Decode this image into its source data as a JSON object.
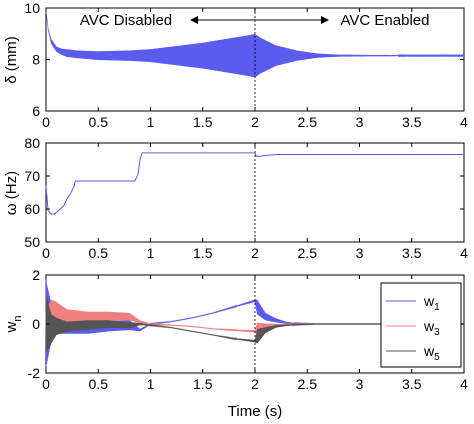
{
  "chart_data": [
    {
      "type": "line",
      "title": "",
      "xlabel": "",
      "ylabel": "δ (mm)",
      "xlim": [
        0,
        4
      ],
      "ylim": [
        6,
        10
      ],
      "xticks": [
        "0",
        "0.5",
        "1",
        "1.5",
        "2",
        "2.5",
        "3",
        "3.5",
        "4"
      ],
      "yticks": [
        "6",
        "8",
        "10"
      ],
      "annotations": {
        "left": "AVC Disabled",
        "right": "AVC Enabled"
      },
      "annotation_time": 2.0,
      "color": "#5b5bf0",
      "series": [
        {
          "description_free": true,
          "x": [
            0.0,
            0.02,
            0.05,
            0.1,
            0.15,
            0.2,
            0.3,
            0.5,
            0.8,
            1.0,
            1.2,
            1.5,
            1.8,
            1.95,
            2.0,
            2.05,
            2.2,
            2.4,
            2.6,
            2.8,
            3.0,
            3.5,
            4.0
          ],
          "center": [
            9.9,
            9.2,
            8.7,
            8.4,
            8.3,
            8.25,
            8.2,
            8.15,
            8.15,
            8.15,
            8.15,
            8.15,
            8.15,
            8.15,
            8.15,
            8.15,
            8.15,
            8.15,
            8.15,
            8.15,
            8.15,
            8.15,
            8.15
          ],
          "amplitude": [
            0.0,
            0.05,
            0.1,
            0.1,
            0.12,
            0.15,
            0.15,
            0.17,
            0.2,
            0.25,
            0.35,
            0.5,
            0.7,
            0.8,
            0.85,
            0.7,
            0.4,
            0.2,
            0.08,
            0.04,
            0.03,
            0.02,
            0.02
          ]
        }
      ]
    },
    {
      "type": "line",
      "title": "",
      "xlabel": "",
      "ylabel": "ω (Hz)",
      "xlim": [
        0,
        4
      ],
      "ylim": [
        50,
        80
      ],
      "xticks": [
        "0",
        "0.5",
        "1",
        "1.5",
        "2",
        "2.5",
        "3",
        "3.5",
        "4"
      ],
      "yticks": [
        "50",
        "60",
        "70",
        "80"
      ],
      "color": "#5b5bf0",
      "series": [
        {
          "x": [
            0.0,
            0.02,
            0.05,
            0.08,
            0.12,
            0.17,
            0.2,
            0.24,
            0.27,
            0.28,
            0.3,
            0.85,
            0.88,
            0.9,
            0.92,
            0.95,
            2.0,
            2.01,
            2.05,
            2.1,
            2.2,
            4.0
          ],
          "y": [
            67.0,
            59.5,
            58.5,
            58.5,
            59.5,
            61.0,
            63.0,
            65.0,
            67.0,
            68.5,
            68.5,
            68.5,
            70.5,
            75.0,
            77.0,
            77.0,
            77.0,
            76.0,
            76.0,
            76.2,
            76.5,
            76.5
          ]
        }
      ]
    },
    {
      "type": "line",
      "title": "",
      "xlabel": "Time (s)",
      "ylabel": "w",
      "ylabel_sub": "n",
      "xlim": [
        0,
        4
      ],
      "ylim": [
        -2,
        2
      ],
      "xticks": [
        "0",
        "0.5",
        "1",
        "1.5",
        "2",
        "2.5",
        "3",
        "3.5",
        "4"
      ],
      "yticks": [
        "-2",
        "0",
        "2"
      ],
      "legend_position": "right",
      "series": [
        {
          "name": "w",
          "name_sub": "1",
          "color": "#5b5bf0",
          "x": [
            0.0,
            0.05,
            0.1,
            0.2,
            0.4,
            0.6,
            0.8,
            0.9,
            1.0,
            1.2,
            1.4,
            1.6,
            1.8,
            2.0,
            2.02,
            2.1,
            2.2,
            2.3,
            2.4,
            2.6,
            3.0,
            4.0
          ],
          "center": [
            0.0,
            0.05,
            0.0,
            -0.1,
            -0.1,
            -0.05,
            -0.05,
            -0.25,
            0.0,
            0.1,
            0.25,
            0.45,
            0.7,
            0.95,
            0.7,
            0.3,
            0.15,
            0.05,
            0.02,
            0.0,
            0.0,
            0.0
          ],
          "amplitude": [
            1.8,
            0.8,
            0.4,
            0.3,
            0.3,
            0.25,
            0.2,
            0.05,
            0.02,
            0.01,
            0.01,
            0.01,
            0.02,
            0.05,
            0.3,
            0.15,
            0.08,
            0.04,
            0.02,
            0.01,
            0.01,
            0.01
          ]
        },
        {
          "name": "w",
          "name_sub": "3",
          "color": "#f08080",
          "x": [
            0.0,
            0.05,
            0.1,
            0.2,
            0.4,
            0.6,
            0.8,
            0.9,
            1.0,
            1.2,
            1.4,
            1.6,
            1.8,
            2.0,
            2.02,
            2.1,
            2.2,
            2.3,
            2.4,
            2.6,
            3.0,
            4.0
          ],
          "center": [
            0.0,
            0.2,
            0.3,
            0.35,
            0.3,
            0.3,
            0.3,
            0.1,
            0.0,
            -0.05,
            -0.1,
            -0.2,
            -0.25,
            -0.3,
            -0.2,
            -0.1,
            -0.05,
            -0.02,
            0.0,
            0.0,
            0.0,
            0.0
          ],
          "amplitude": [
            0.5,
            0.8,
            0.6,
            0.25,
            0.2,
            0.2,
            0.15,
            0.05,
            0.02,
            0.01,
            0.01,
            0.01,
            0.02,
            0.05,
            0.25,
            0.12,
            0.05,
            0.03,
            0.02,
            0.01,
            0.01,
            0.01
          ]
        },
        {
          "name": "w",
          "name_sub": "5",
          "color": "#555555",
          "x": [
            0.0,
            0.05,
            0.1,
            0.2,
            0.4,
            0.6,
            0.8,
            0.9,
            1.0,
            1.2,
            1.4,
            1.6,
            1.8,
            2.0,
            2.02,
            2.1,
            2.2,
            2.3,
            2.4,
            2.6,
            3.0,
            4.0
          ],
          "center": [
            0.0,
            -0.2,
            -0.1,
            -0.1,
            -0.05,
            0.0,
            -0.05,
            0.0,
            -0.05,
            -0.15,
            -0.3,
            -0.45,
            -0.6,
            -0.7,
            -0.5,
            -0.25,
            -0.1,
            -0.05,
            -0.02,
            0.0,
            0.0,
            0.0
          ],
          "amplitude": [
            1.2,
            0.6,
            0.35,
            0.2,
            0.2,
            0.15,
            0.12,
            0.05,
            0.02,
            0.01,
            0.01,
            0.01,
            0.02,
            0.05,
            0.3,
            0.12,
            0.05,
            0.03,
            0.02,
            0.01,
            0.01,
            0.01
          ]
        }
      ]
    }
  ]
}
